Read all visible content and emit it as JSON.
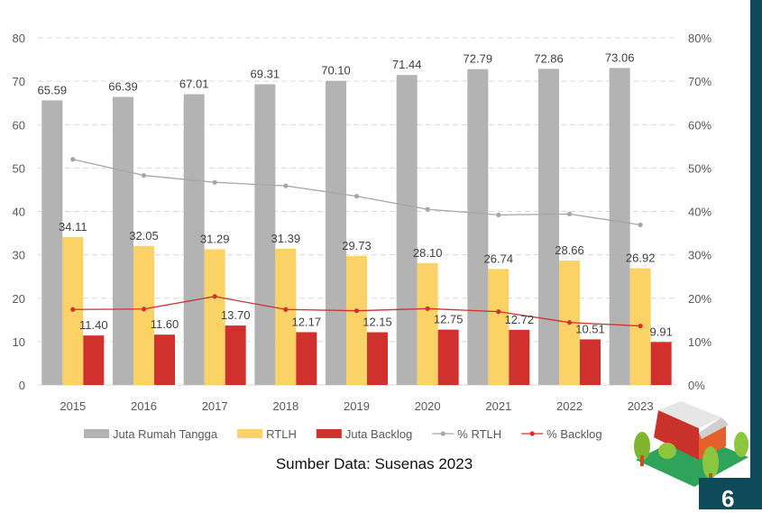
{
  "chart_data": {
    "type": "bar",
    "categories": [
      "2015",
      "2016",
      "2017",
      "2018",
      "2019",
      "2020",
      "2021",
      "2022",
      "2023"
    ],
    "ylim": [
      0,
      80
    ],
    "y_ticks": [
      "0",
      "10",
      "20",
      "30",
      "40",
      "50",
      "60",
      "70",
      "80"
    ],
    "y2lim": [
      0,
      80
    ],
    "y2_ticks": [
      "0%",
      "10%",
      "20%",
      "30%",
      "40%",
      "50%",
      "60%",
      "70%",
      "80%"
    ],
    "grid": true,
    "legend_position": "bottom",
    "series": [
      {
        "name": "Juta Rumah Tangga",
        "kind": "bar",
        "axis": "left",
        "color": "#b3b3b3",
        "values": [
          65.59,
          66.39,
          67.01,
          69.31,
          70.1,
          71.44,
          72.79,
          72.86,
          73.06
        ],
        "labels": [
          "65.59",
          "66.39",
          "67.01",
          "69.31",
          "70.10",
          "71.44",
          "72.79",
          "72.86",
          "73.06"
        ]
      },
      {
        "name": "RTLH",
        "kind": "bar",
        "axis": "left",
        "color": "#fad266",
        "values": [
          34.11,
          32.05,
          31.29,
          31.39,
          29.73,
          28.1,
          26.74,
          28.66,
          26.92
        ],
        "labels": [
          "34.11",
          "32.05",
          "31.29",
          "31.39",
          "29.73",
          "28.10",
          "26.74",
          "28.66",
          "26.92"
        ]
      },
      {
        "name": "Juta Backlog",
        "kind": "bar",
        "axis": "left",
        "color": "#d0312d",
        "values": [
          11.4,
          11.6,
          13.7,
          12.17,
          12.15,
          12.75,
          12.72,
          10.51,
          9.91
        ],
        "labels": [
          "11.40",
          "11.60",
          "13.70",
          "12.17",
          "12.15",
          "12.75",
          "12.72",
          "10.51",
          "9.91"
        ]
      },
      {
        "name": "% RTLH",
        "kind": "line",
        "axis": "right",
        "color": "#a6a6a6",
        "values": [
          52.0,
          48.3,
          46.7,
          45.9,
          43.5,
          40.5,
          39.2,
          39.4,
          36.9
        ]
      },
      {
        "name": "% Backlog",
        "kind": "line",
        "axis": "right",
        "color": "#d0312d",
        "values": [
          17.4,
          17.5,
          20.4,
          17.4,
          17.1,
          17.6,
          16.9,
          14.4,
          13.6
        ]
      }
    ]
  },
  "footer": {
    "source": "Sumber Data: Susenas 2023",
    "page_number": "6"
  }
}
